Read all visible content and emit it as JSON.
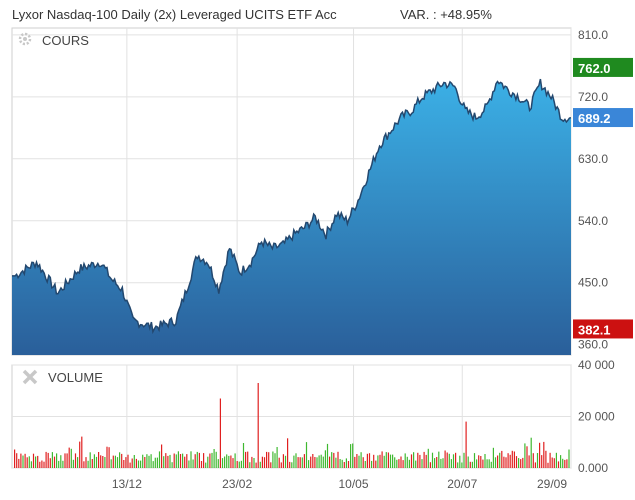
{
  "header": {
    "title": "Lyxor Nasdaq-100 Daily (2x) Leveraged UCITS ETF Acc",
    "variation": "VAR. : +48.95%"
  },
  "panels": {
    "price_label": "COURS",
    "volume_label": "VOLUME"
  },
  "colors": {
    "area_top": "#3bb0e6",
    "area_bottom": "#2a5f9a",
    "line": "#23486f",
    "high_tag": "#1f8a1f",
    "last_tag": "#3a86d8",
    "low_tag": "#cc1111",
    "volume_up": "#3fb830",
    "volume_down": "#e02020",
    "grid": "#e2e2e2"
  },
  "icons": {
    "price_panel": "gear-icon",
    "volume_panel": "close-icon"
  },
  "chart_data": [
    {
      "type": "area",
      "title": "COURS",
      "x": [
        "2020-10-01",
        "2020-10-15",
        "2020-10-29",
        "2020-11-12",
        "2020-11-26",
        "2020-12-03",
        "2020-12-10",
        "2020-12-17",
        "2020-12-31",
        "2021-01-14",
        "2021-01-21",
        "2021-01-28",
        "2021-02-04",
        "2021-02-11",
        "2021-02-18",
        "2021-02-25",
        "2021-03-04",
        "2021-03-11",
        "2021-03-18",
        "2021-03-25",
        "2021-04-01",
        "2021-04-08",
        "2021-04-15",
        "2021-04-22",
        "2021-04-29",
        "2021-05-06",
        "2021-05-13",
        "2021-05-20",
        "2021-05-27",
        "2021-06-03",
        "2021-06-10",
        "2021-06-17",
        "2021-06-24",
        "2021-07-01",
        "2021-07-08",
        "2021-07-15",
        "2021-07-22",
        "2021-07-29",
        "2021-08-05",
        "2021-08-12",
        "2021-08-19",
        "2021-08-26",
        "2021-09-02",
        "2021-09-09",
        "2021-09-16",
        "2021-09-23",
        "2021-09-29"
      ],
      "series": [
        {
          "values": [
            460,
            480,
            435,
            470,
            480,
            455,
            440,
            395,
            385,
            395,
            440,
            490,
            480,
            440,
            500,
            465,
            480,
            510,
            500,
            505,
            520,
            530,
            545,
            520,
            550,
            540,
            570,
            610,
            650,
            670,
            690,
            700,
            720,
            730,
            740,
            735,
            700,
            690,
            705,
            745,
            730,
            720,
            705,
            740,
            720,
            690,
            689.2
          ]
        }
      ],
      "xticks": [
        "13/12",
        "23/02",
        "10/05",
        "20/07",
        "29/09"
      ],
      "yticks": [
        "810.0",
        "720.0",
        "630.0",
        "540.0",
        "450.0",
        "360.0"
      ],
      "ylim": [
        345,
        820
      ],
      "markers": {
        "high": "762.0",
        "last": "689.2",
        "low": "382.1"
      },
      "grid": true
    },
    {
      "type": "bar",
      "title": "VOLUME",
      "yticks": [
        "40 000",
        "20 000",
        "0.000"
      ],
      "ylim": [
        0,
        40000
      ],
      "grid": true,
      "peaks": [
        {
          "date": "2021-02-12",
          "value": 27000
        },
        {
          "date": "2021-03-09",
          "value": 33000
        },
        {
          "date": "2021-07-22",
          "value": 18000
        }
      ]
    }
  ]
}
